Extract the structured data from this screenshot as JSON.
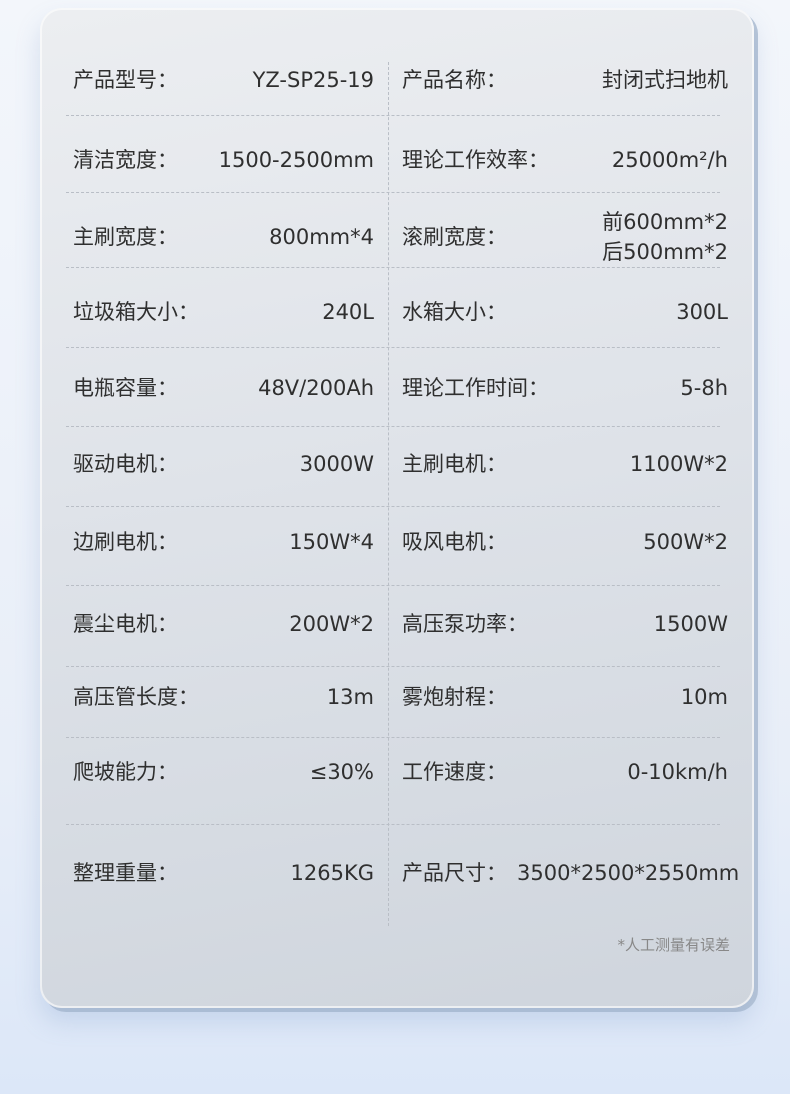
{
  "rows": [
    [
      {
        "label": "产品型号：",
        "value": "YZ-SP25-19"
      },
      {
        "label": "产品名称：",
        "value": "封闭式扫地机"
      }
    ],
    [
      {
        "label": "清洁宽度：",
        "value": "1500-2500mm"
      },
      {
        "label": "理论工作效率：",
        "value": "25000m²/h"
      }
    ],
    [
      {
        "label": "主刷宽度：",
        "value": "800mm*4"
      },
      {
        "label": "滚刷宽度：",
        "value": "前600mm*2\n后500mm*2"
      }
    ],
    [
      {
        "label": "垃圾箱大小：",
        "value": "240L"
      },
      {
        "label": "水箱大小：",
        "value": "300L"
      }
    ],
    [
      {
        "label": "电瓶容量：",
        "value": "48V/200Ah"
      },
      {
        "label": "理论工作时间：",
        "value": "5-8h"
      }
    ],
    [
      {
        "label": "驱动电机：",
        "value": "3000W"
      },
      {
        "label": "主刷电机：",
        "value": "1100W*2"
      }
    ],
    [
      {
        "label": "边刷电机：",
        "value": "150W*4"
      },
      {
        "label": "吸风电机：",
        "value": "500W*2"
      }
    ],
    [
      {
        "label": "震尘电机：",
        "value": "200W*2"
      },
      {
        "label": "高压泵功率：",
        "value": "1500W"
      }
    ],
    [
      {
        "label": "高压管长度：",
        "value": "13m"
      },
      {
        "label": "雾炮射程：",
        "value": "10m"
      }
    ],
    [
      {
        "label": "爬坡能力：",
        "value": "≤30%"
      },
      {
        "label": "工作速度：",
        "value": "0-10km/h"
      }
    ],
    [
      {
        "label": "整理重量：",
        "value": "1265KG"
      },
      {
        "label": "产品尺寸：",
        "value": "3500*2500*2550mm"
      }
    ]
  ],
  "note": "*人工测量有误差"
}
